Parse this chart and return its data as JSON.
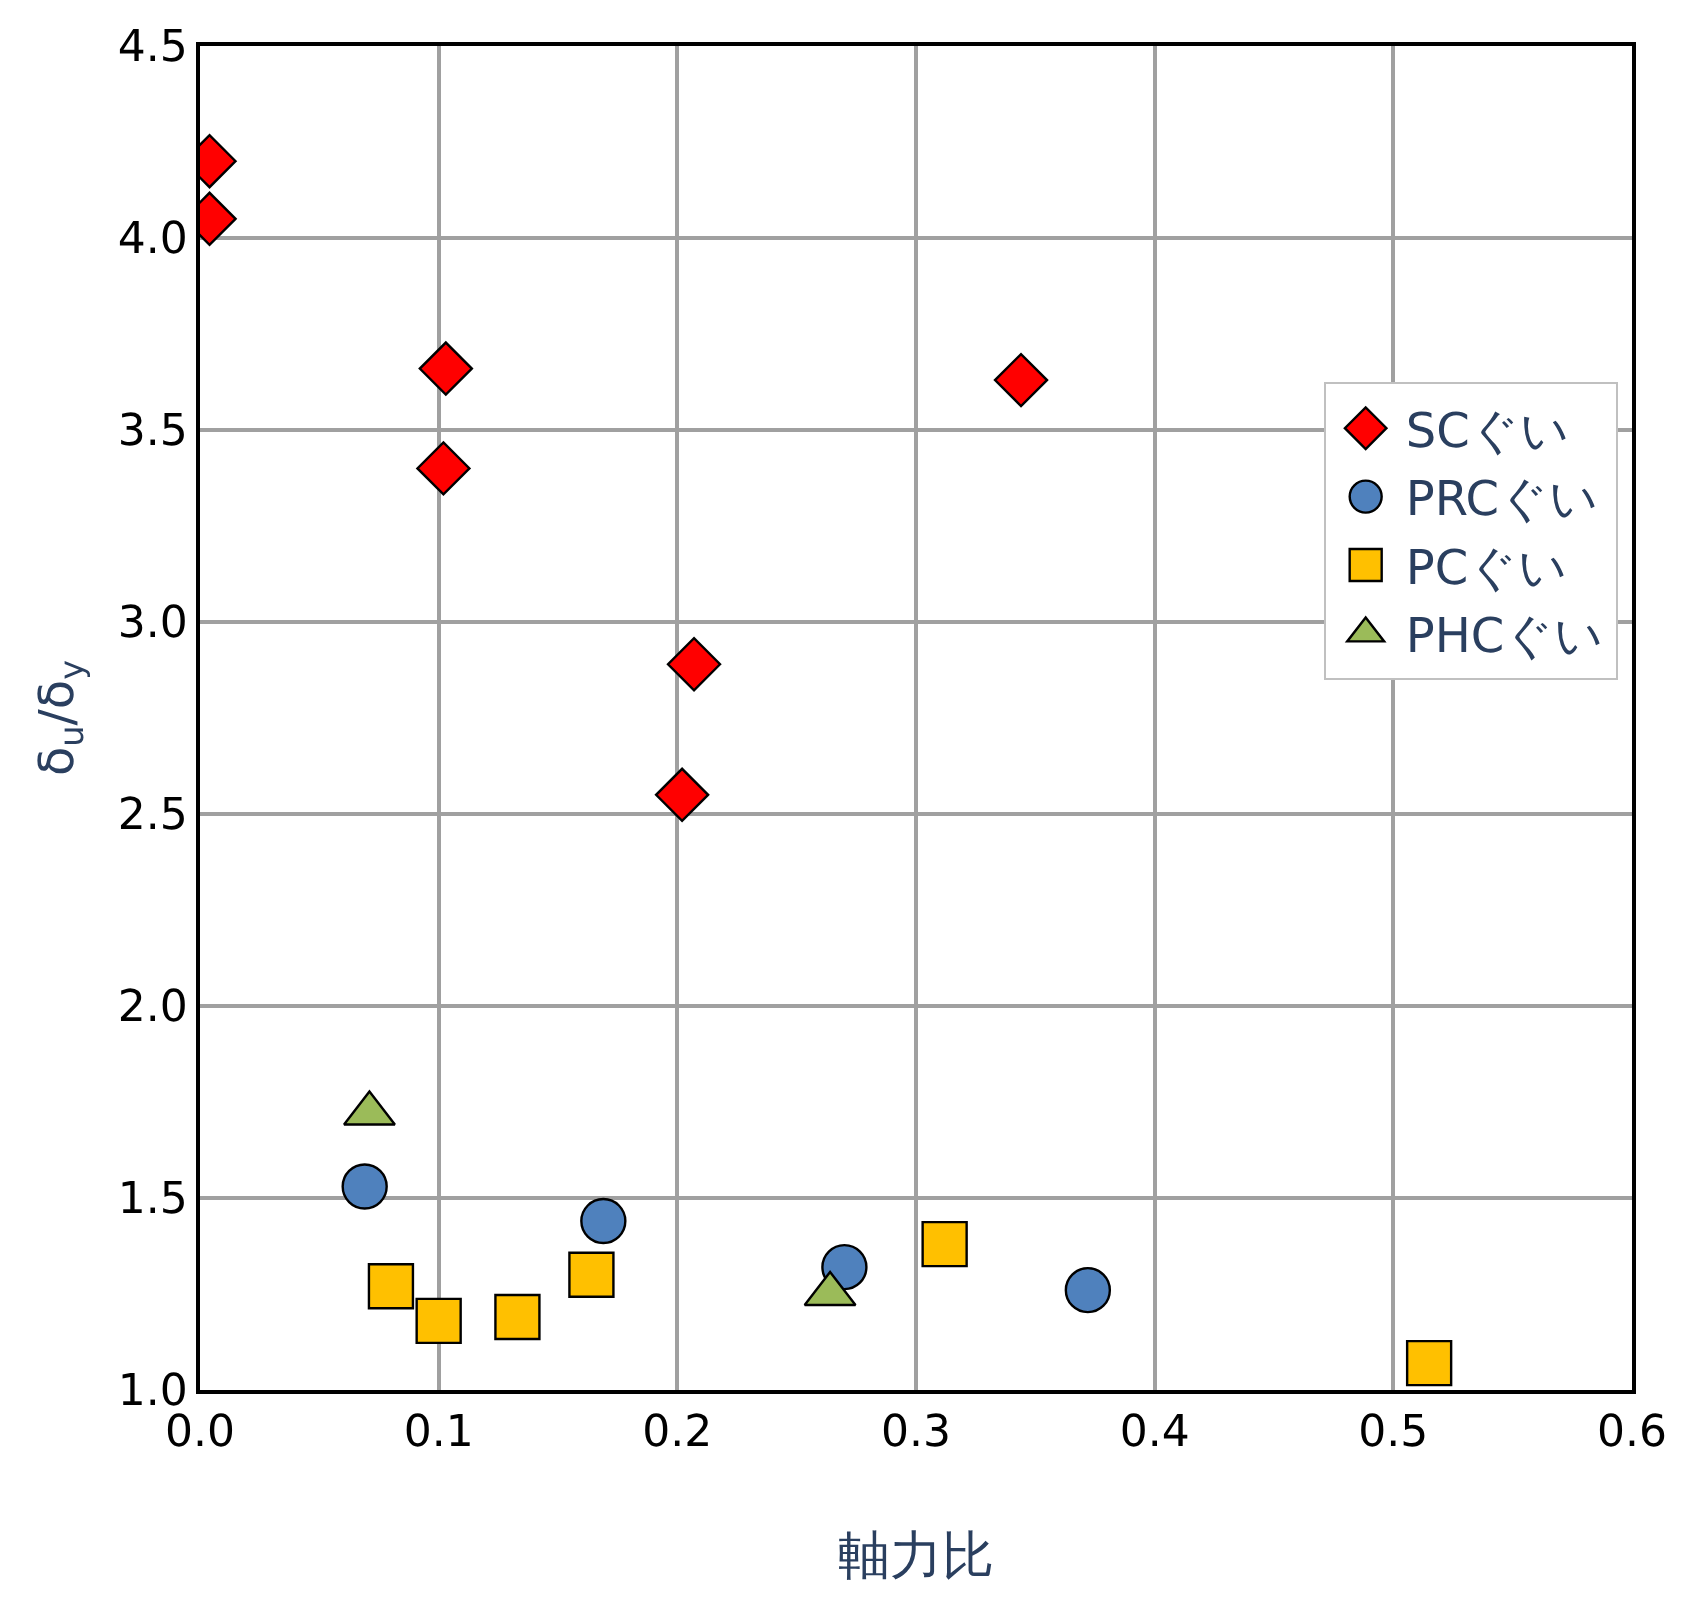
{
  "chart_data": {
    "type": "scatter",
    "xlabel": "軸力比",
    "ylabel": "δ$_{u}$/δ$_{y}$",
    "xlim": [
      0,
      0.6
    ],
    "xticks": [
      {
        "value": 0,
        "label": "0.0"
      },
      0.1,
      0.2,
      0.3,
      0.4,
      0.5,
      0.6
    ],
    "ylim": [
      1,
      4.5
    ],
    "yticks": [
      {
        "value": 1,
        "label": "1.0"
      },
      1.5,
      {
        "value": 2,
        "label": "2.0"
      },
      2.5,
      {
        "value": 3,
        "label": "3.0"
      },
      3.5,
      {
        "value": 4,
        "label": "4.0"
      },
      4.5
    ],
    "grid": true,
    "legend": "right",
    "series": [
      {
        "name": "SCぐい",
        "color": "#ff0000",
        "marker": "diamond",
        "x": [
          0.004,
          0.004,
          0.103,
          0.102,
          0.344,
          0.207,
          0.202
        ],
        "values": [
          4.2,
          4.05,
          3.66,
          3.4,
          3.63,
          2.89,
          2.55
        ]
      },
      {
        "name": "PRCぐい",
        "color": "#4f81bd",
        "marker": "circle",
        "x": [
          0.069,
          0.169,
          0.27,
          0.372
        ],
        "values": [
          1.53,
          1.44,
          1.32,
          1.26
        ]
      },
      {
        "name": "PCぐい",
        "color": "#ffc000",
        "marker": "square",
        "x": [
          0.08,
          0.1,
          0.133,
          0.164,
          0.312,
          0.515
        ],
        "values": [
          1.27,
          1.18,
          1.19,
          1.3,
          1.38,
          1.07
        ]
      },
      {
        "name": "PHCぐい",
        "color": "#9bbb59",
        "marker": "triangle",
        "x": [
          0.071,
          0.264
        ],
        "values": [
          1.72,
          1.25
        ]
      }
    ]
  }
}
